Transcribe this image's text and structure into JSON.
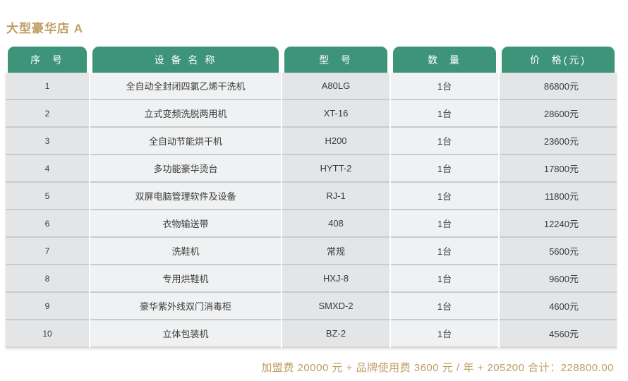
{
  "page": {
    "title": "大型豪华店 A"
  },
  "colors": {
    "header_green": "#3e9479",
    "accent_gold": "#bf9d62",
    "cell_dark": "#e4e5e7",
    "cell_light": "#f0f1f2",
    "row_separator": "#c9cacc",
    "body_text": "#3b3b3b"
  },
  "table": {
    "columns": [
      {
        "key": "index",
        "label": "序  号"
      },
      {
        "key": "name",
        "label": "设 备 名 称"
      },
      {
        "key": "model",
        "label": "型  号"
      },
      {
        "key": "qty",
        "label": "数  量"
      },
      {
        "key": "price",
        "label": "价  格(元)"
      }
    ],
    "rows": [
      {
        "index": "1",
        "name": "全自动全封闭四氯乙烯干洗机",
        "model": "A80LG",
        "qty": "1台",
        "price": "86800元"
      },
      {
        "index": "2",
        "name": "立式变频洗脱两用机",
        "model": "XT-16",
        "qty": "1台",
        "price": "28600元"
      },
      {
        "index": "3",
        "name": "全自动节能烘干机",
        "model": "H200",
        "qty": "1台",
        "price": "23600元"
      },
      {
        "index": "4",
        "name": "多功能豪华烫台",
        "model": "HYTT-2",
        "qty": "1台",
        "price": "17800元"
      },
      {
        "index": "5",
        "name": "双屏电脑管理软件及设备",
        "model": "RJ-1",
        "qty": "1台",
        "price": "11800元"
      },
      {
        "index": "6",
        "name": "衣物输送带",
        "model": "408",
        "qty": "1台",
        "price": "12240元"
      },
      {
        "index": "7",
        "name": "洗鞋机",
        "model": "常规",
        "qty": "1台",
        "price": "5600元"
      },
      {
        "index": "8",
        "name": "专用烘鞋机",
        "model": "HXJ-8",
        "qty": "1台",
        "price": "9600元"
      },
      {
        "index": "9",
        "name": "豪华紫外线双门消毒柜",
        "model": "SMXD-2",
        "qty": "1台",
        "price": "4600元"
      },
      {
        "index": "10",
        "name": "立体包装机",
        "model": "BZ-2",
        "qty": "1台",
        "price": "4560元"
      }
    ]
  },
  "footer": {
    "summary": "加盟费 20000 元 + 品牌使用费 3600 元 / 年 + 205200 合计：228800.00"
  }
}
